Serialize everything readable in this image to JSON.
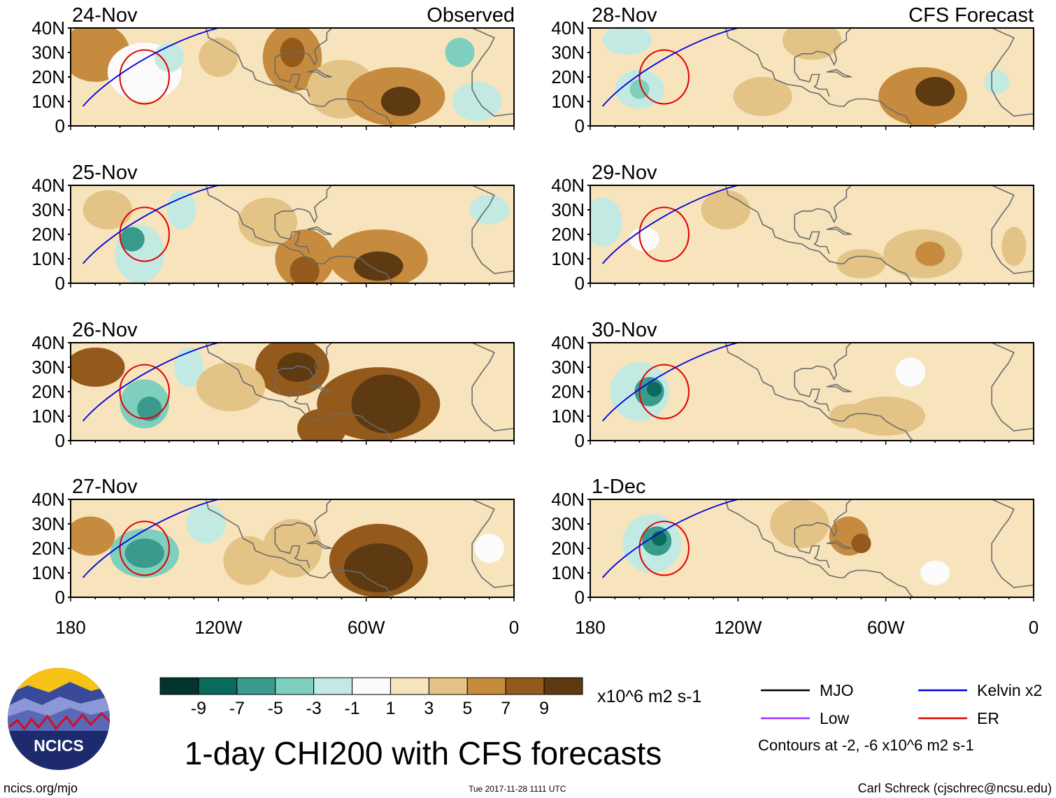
{
  "title": "1-day CHI200 with CFS forecasts",
  "headers": {
    "left": "Observed",
    "right": "CFS Forecast"
  },
  "panels": [
    {
      "date": "24-Nov",
      "blobs": [
        {
          "lon": -170,
          "lat": 30,
          "rx": 14,
          "ry": 12,
          "v": 6
        },
        {
          "lon": -90,
          "lat": 28,
          "rx": 12,
          "ry": 14,
          "v": 6
        },
        {
          "lon": -90,
          "lat": 30,
          "rx": 5,
          "ry": 6,
          "v": 8
        },
        {
          "lon": -70,
          "lat": 15,
          "rx": 14,
          "ry": 12,
          "v": 4
        },
        {
          "lon": -48,
          "lat": 12,
          "rx": 20,
          "ry": 12,
          "v": 6
        },
        {
          "lon": -46,
          "lat": 10,
          "rx": 8,
          "ry": 6,
          "v": 9
        },
        {
          "lon": -120,
          "lat": 28,
          "rx": 8,
          "ry": 8,
          "v": 3
        },
        {
          "lon": -150,
          "lat": 22,
          "rx": 15,
          "ry": 12,
          "v": -1
        },
        {
          "lon": -140,
          "lat": 28,
          "rx": 6,
          "ry": 6,
          "v": -2
        },
        {
          "lon": -22,
          "lat": 30,
          "rx": 6,
          "ry": 6,
          "v": -4
        },
        {
          "lon": -15,
          "lat": 10,
          "rx": 10,
          "ry": 8,
          "v": -2
        }
      ]
    },
    {
      "date": "25-Nov",
      "blobs": [
        {
          "lon": -165,
          "lat": 30,
          "rx": 10,
          "ry": 8,
          "v": 4
        },
        {
          "lon": -152,
          "lat": 12,
          "rx": 10,
          "ry": 12,
          "v": -3
        },
        {
          "lon": -155,
          "lat": 18,
          "rx": 5,
          "ry": 5,
          "v": -6
        },
        {
          "lon": -135,
          "lat": 30,
          "rx": 6,
          "ry": 8,
          "v": -3
        },
        {
          "lon": -85,
          "lat": 10,
          "rx": 12,
          "ry": 12,
          "v": 6
        },
        {
          "lon": -85,
          "lat": 5,
          "rx": 6,
          "ry": 6,
          "v": 8
        },
        {
          "lon": -55,
          "lat": 10,
          "rx": 20,
          "ry": 12,
          "v": 6
        },
        {
          "lon": -55,
          "lat": 7,
          "rx": 10,
          "ry": 6,
          "v": 9
        },
        {
          "lon": -100,
          "lat": 25,
          "rx": 12,
          "ry": 10,
          "v": 3
        },
        {
          "lon": -10,
          "lat": 30,
          "rx": 8,
          "ry": 6,
          "v": -2
        }
      ]
    },
    {
      "date": "26-Nov",
      "blobs": [
        {
          "lon": -170,
          "lat": 30,
          "rx": 12,
          "ry": 8,
          "v": 7
        },
        {
          "lon": -150,
          "lat": 15,
          "rx": 10,
          "ry": 10,
          "v": -4
        },
        {
          "lon": -148,
          "lat": 13,
          "rx": 5,
          "ry": 5,
          "v": -7
        },
        {
          "lon": -132,
          "lat": 30,
          "rx": 6,
          "ry": 8,
          "v": -2
        },
        {
          "lon": -90,
          "lat": 30,
          "rx": 15,
          "ry": 12,
          "v": 7
        },
        {
          "lon": -88,
          "lat": 30,
          "rx": 8,
          "ry": 6,
          "v": 9
        },
        {
          "lon": -55,
          "lat": 15,
          "rx": 25,
          "ry": 15,
          "v": 7
        },
        {
          "lon": -52,
          "lat": 15,
          "rx": 14,
          "ry": 12,
          "v": 10
        },
        {
          "lon": -78,
          "lat": 5,
          "rx": 10,
          "ry": 8,
          "v": 8
        },
        {
          "lon": -115,
          "lat": 22,
          "rx": 14,
          "ry": 10,
          "v": 4
        }
      ]
    },
    {
      "date": "27-Nov",
      "blobs": [
        {
          "lon": -172,
          "lat": 25,
          "rx": 10,
          "ry": 8,
          "v": 6
        },
        {
          "lon": -150,
          "lat": 18,
          "rx": 14,
          "ry": 10,
          "v": -5
        },
        {
          "lon": -150,
          "lat": 18,
          "rx": 8,
          "ry": 6,
          "v": -6
        },
        {
          "lon": -125,
          "lat": 30,
          "rx": 8,
          "ry": 8,
          "v": -2
        },
        {
          "lon": -55,
          "lat": 15,
          "rx": 20,
          "ry": 15,
          "v": 8
        },
        {
          "lon": -55,
          "lat": 12,
          "rx": 14,
          "ry": 10,
          "v": 10
        },
        {
          "lon": -90,
          "lat": 20,
          "rx": 12,
          "ry": 12,
          "v": 4
        },
        {
          "lon": -108,
          "lat": 15,
          "rx": 10,
          "ry": 10,
          "v": 3
        },
        {
          "lon": -10,
          "lat": 20,
          "rx": 6,
          "ry": 6,
          "v": -1
        }
      ]
    },
    {
      "date": "28-Nov",
      "blobs": [
        {
          "lon": -165,
          "lat": 35,
          "rx": 10,
          "ry": 6,
          "v": -2
        },
        {
          "lon": -160,
          "lat": 15,
          "rx": 10,
          "ry": 8,
          "v": -3
        },
        {
          "lon": -160,
          "lat": 15,
          "rx": 4,
          "ry": 4,
          "v": -5
        },
        {
          "lon": -90,
          "lat": 35,
          "rx": 12,
          "ry": 8,
          "v": 4
        },
        {
          "lon": -45,
          "lat": 12,
          "rx": 18,
          "ry": 12,
          "v": 6
        },
        {
          "lon": -40,
          "lat": 14,
          "rx": 8,
          "ry": 6,
          "v": 9
        },
        {
          "lon": -110,
          "lat": 12,
          "rx": 12,
          "ry": 8,
          "v": 4
        },
        {
          "lon": -15,
          "lat": 18,
          "rx": 5,
          "ry": 5,
          "v": -2
        }
      ]
    },
    {
      "date": "29-Nov",
      "blobs": [
        {
          "lon": -175,
          "lat": 25,
          "rx": 8,
          "ry": 10,
          "v": -2
        },
        {
          "lon": -158,
          "lat": 18,
          "rx": 6,
          "ry": 5,
          "v": -1
        },
        {
          "lon": -45,
          "lat": 12,
          "rx": 16,
          "ry": 10,
          "v": 4
        },
        {
          "lon": -42,
          "lat": 12,
          "rx": 6,
          "ry": 5,
          "v": 6
        },
        {
          "lon": -70,
          "lat": 8,
          "rx": 10,
          "ry": 6,
          "v": 4
        },
        {
          "lon": -125,
          "lat": 30,
          "rx": 10,
          "ry": 8,
          "v": 3
        },
        {
          "lon": -95,
          "lat": 25,
          "rx": 10,
          "ry": 8,
          "v": 2
        },
        {
          "lon": -8,
          "lat": 15,
          "rx": 5,
          "ry": 8,
          "v": 3
        }
      ]
    },
    {
      "date": "30-Nov",
      "blobs": [
        {
          "lon": -160,
          "lat": 20,
          "rx": 12,
          "ry": 12,
          "v": -3
        },
        {
          "lon": -156,
          "lat": 20,
          "rx": 6,
          "ry": 6,
          "v": -6
        },
        {
          "lon": -154,
          "lat": 21,
          "rx": 3,
          "ry": 3,
          "v": -9
        },
        {
          "lon": -60,
          "lat": 10,
          "rx": 16,
          "ry": 8,
          "v": 3
        },
        {
          "lon": -110,
          "lat": 20,
          "rx": 14,
          "ry": 8,
          "v": 2
        },
        {
          "lon": -75,
          "lat": 10,
          "rx": 8,
          "ry": 5,
          "v": 4
        },
        {
          "lon": -50,
          "lat": 28,
          "rx": 6,
          "ry": 6,
          "v": -1
        }
      ]
    },
    {
      "date": "1-Dec",
      "blobs": [
        {
          "lon": -155,
          "lat": 22,
          "rx": 12,
          "ry": 12,
          "v": -3
        },
        {
          "lon": -153,
          "lat": 23,
          "rx": 6,
          "ry": 6,
          "v": -6
        },
        {
          "lon": -152,
          "lat": 24,
          "rx": 3,
          "ry": 3,
          "v": -9
        },
        {
          "lon": -75,
          "lat": 25,
          "rx": 8,
          "ry": 8,
          "v": 5
        },
        {
          "lon": -70,
          "lat": 22,
          "rx": 4,
          "ry": 4,
          "v": 7
        },
        {
          "lon": -95,
          "lat": 30,
          "rx": 12,
          "ry": 10,
          "v": 3
        },
        {
          "lon": -40,
          "lat": 10,
          "rx": 6,
          "ry": 5,
          "v": -1
        },
        {
          "lon": -125,
          "lat": 15,
          "rx": 10,
          "ry": 6,
          "v": 2
        }
      ]
    }
  ],
  "axes": {
    "lat_ticks": [
      "40N",
      "30N",
      "20N",
      "10N",
      "0"
    ],
    "lon_ticks": [
      "180",
      "120W",
      "60W",
      "0"
    ]
  },
  "colorbar": {
    "labels": [
      "-9",
      "-7",
      "-5",
      "-3",
      "-1",
      "1",
      "3",
      "5",
      "7",
      "9"
    ],
    "colors": [
      "#02352e",
      "#0a6a5b",
      "#3a9a8c",
      "#7ecfbe",
      "#c2eae2",
      "#fbfbfb",
      "#f7e4bc",
      "#e4c486",
      "#c68b3e",
      "#945a1c",
      "#5e3a12"
    ],
    "units": "x10^6 m2 s-1"
  },
  "legend": {
    "items": [
      {
        "label": "MJO",
        "color": "#000000"
      },
      {
        "label": "Kelvin x2",
        "color": "#0000dd"
      },
      {
        "label": "Low",
        "color": "#9933ff"
      },
      {
        "label": "ER",
        "color": "#dd0000"
      }
    ],
    "note": "Contours at -2, -6 x10^6 m2 s-1"
  },
  "logo": {
    "text": "NCICS"
  },
  "footer": {
    "url": "ncics.org/mjo",
    "timestamp": "Tue 2017-11-28 1111 UTC",
    "credit": "Carl Schreck (cjschrec@ncsu.edu)"
  }
}
